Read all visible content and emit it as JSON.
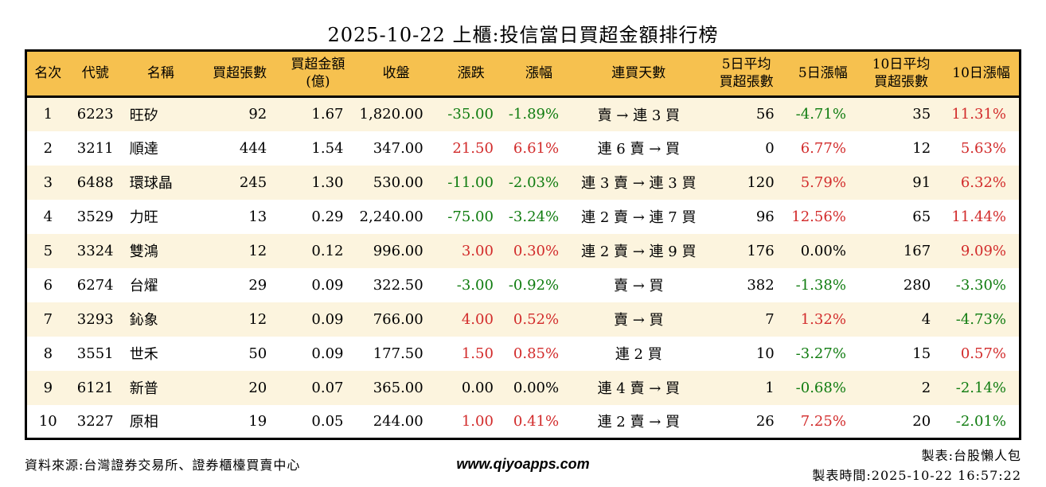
{
  "title": "2025-10-22 上櫃:投信當日買超金額排行榜",
  "colors": {
    "header_bg": "#f6c14f",
    "stripe": "#fcf4de",
    "up": "#d22b2b",
    "down": "#107c10",
    "border": "#000000"
  },
  "table": {
    "columns": [
      {
        "key": "rank",
        "label": "名次",
        "align": "center"
      },
      {
        "key": "code",
        "label": "代號",
        "align": "center"
      },
      {
        "key": "name",
        "label": "名稱",
        "align": "left"
      },
      {
        "key": "volume",
        "label": "買超張數",
        "align": "right"
      },
      {
        "key": "amount",
        "label": "買超金額\n(億)",
        "align": "right"
      },
      {
        "key": "close",
        "label": "收盤",
        "align": "right"
      },
      {
        "key": "change",
        "label": "漲跌",
        "align": "right"
      },
      {
        "key": "chg_pct",
        "label": "漲幅",
        "align": "right"
      },
      {
        "key": "streak",
        "label": "連買天數",
        "align": "center"
      },
      {
        "key": "avg5",
        "label": "5日平均\n買超張數",
        "align": "right"
      },
      {
        "key": "pct5",
        "label": "5日漲幅",
        "align": "right"
      },
      {
        "key": "avg10",
        "label": "10日平均\n買超張數",
        "align": "right"
      },
      {
        "key": "pct10",
        "label": "10日漲幅",
        "align": "right"
      }
    ],
    "rows": [
      {
        "rank": "1",
        "code": "6223",
        "name": "旺矽",
        "volume": "92",
        "amount": "1.67",
        "close": "1,820.00",
        "change": {
          "text": "-35.00",
          "trend": "down"
        },
        "chg_pct": {
          "text": "-1.89%",
          "trend": "down"
        },
        "streak": "賣 → 連 3 買",
        "avg5": "56",
        "pct5": {
          "text": "-4.71%",
          "trend": "down"
        },
        "avg10": "35",
        "pct10": {
          "text": "11.31%",
          "trend": "up"
        }
      },
      {
        "rank": "2",
        "code": "3211",
        "name": "順達",
        "volume": "444",
        "amount": "1.54",
        "close": "347.00",
        "change": {
          "text": "21.50",
          "trend": "up"
        },
        "chg_pct": {
          "text": "6.61%",
          "trend": "up"
        },
        "streak": "連 6 賣 → 買",
        "avg5": "0",
        "pct5": {
          "text": "6.77%",
          "trend": "up"
        },
        "avg10": "12",
        "pct10": {
          "text": "5.63%",
          "trend": "up"
        }
      },
      {
        "rank": "3",
        "code": "6488",
        "name": "環球晶",
        "volume": "245",
        "amount": "1.30",
        "close": "530.00",
        "change": {
          "text": "-11.00",
          "trend": "down"
        },
        "chg_pct": {
          "text": "-2.03%",
          "trend": "down"
        },
        "streak": "連 3 賣 → 連 3 買",
        "avg5": "120",
        "pct5": {
          "text": "5.79%",
          "trend": "up"
        },
        "avg10": "91",
        "pct10": {
          "text": "6.32%",
          "trend": "up"
        }
      },
      {
        "rank": "4",
        "code": "3529",
        "name": "力旺",
        "volume": "13",
        "amount": "0.29",
        "close": "2,240.00",
        "change": {
          "text": "-75.00",
          "trend": "down"
        },
        "chg_pct": {
          "text": "-3.24%",
          "trend": "down"
        },
        "streak": "連 2 賣 → 連 7 買",
        "avg5": "96",
        "pct5": {
          "text": "12.56%",
          "trend": "up"
        },
        "avg10": "65",
        "pct10": {
          "text": "11.44%",
          "trend": "up"
        }
      },
      {
        "rank": "5",
        "code": "3324",
        "name": "雙鴻",
        "volume": "12",
        "amount": "0.12",
        "close": "996.00",
        "change": {
          "text": "3.00",
          "trend": "up"
        },
        "chg_pct": {
          "text": "0.30%",
          "trend": "up"
        },
        "streak": "連 2 賣 → 連 9 買",
        "avg5": "176",
        "pct5": {
          "text": "0.00%",
          "trend": "flat"
        },
        "avg10": "167",
        "pct10": {
          "text": "9.09%",
          "trend": "up"
        }
      },
      {
        "rank": "6",
        "code": "6274",
        "name": "台燿",
        "volume": "29",
        "amount": "0.09",
        "close": "322.50",
        "change": {
          "text": "-3.00",
          "trend": "down"
        },
        "chg_pct": {
          "text": "-0.92%",
          "trend": "down"
        },
        "streak": "賣 → 買",
        "avg5": "382",
        "pct5": {
          "text": "-1.38%",
          "trend": "down"
        },
        "avg10": "280",
        "pct10": {
          "text": "-3.30%",
          "trend": "down"
        }
      },
      {
        "rank": "7",
        "code": "3293",
        "name": "鈊象",
        "volume": "12",
        "amount": "0.09",
        "close": "766.00",
        "change": {
          "text": "4.00",
          "trend": "up"
        },
        "chg_pct": {
          "text": "0.52%",
          "trend": "up"
        },
        "streak": "賣 → 買",
        "avg5": "7",
        "pct5": {
          "text": "1.32%",
          "trend": "up"
        },
        "avg10": "4",
        "pct10": {
          "text": "-4.73%",
          "trend": "down"
        }
      },
      {
        "rank": "8",
        "code": "3551",
        "name": "世禾",
        "volume": "50",
        "amount": "0.09",
        "close": "177.50",
        "change": {
          "text": "1.50",
          "trend": "up"
        },
        "chg_pct": {
          "text": "0.85%",
          "trend": "up"
        },
        "streak": "連 2 買",
        "avg5": "10",
        "pct5": {
          "text": "-3.27%",
          "trend": "down"
        },
        "avg10": "15",
        "pct10": {
          "text": "0.57%",
          "trend": "up"
        }
      },
      {
        "rank": "9",
        "code": "6121",
        "name": "新普",
        "volume": "20",
        "amount": "0.07",
        "close": "365.00",
        "change": {
          "text": "0.00",
          "trend": "flat"
        },
        "chg_pct": {
          "text": "0.00%",
          "trend": "flat"
        },
        "streak": "連 4 賣 → 買",
        "avg5": "1",
        "pct5": {
          "text": "-0.68%",
          "trend": "down"
        },
        "avg10": "2",
        "pct10": {
          "text": "-2.14%",
          "trend": "down"
        }
      },
      {
        "rank": "10",
        "code": "3227",
        "name": "原相",
        "volume": "19",
        "amount": "0.05",
        "close": "244.00",
        "change": {
          "text": "1.00",
          "trend": "up"
        },
        "chg_pct": {
          "text": "0.41%",
          "trend": "up"
        },
        "streak": "連 2 賣 → 買",
        "avg5": "26",
        "pct5": {
          "text": "7.25%",
          "trend": "up"
        },
        "avg10": "20",
        "pct10": {
          "text": "-2.01%",
          "trend": "down"
        }
      }
    ]
  },
  "footer": {
    "source": "資料來源:台灣證券交易所、證券櫃檯買賣中心",
    "site": "www.qiyoapps.com",
    "maker": "製表:台股懶人包",
    "made_time": "製表時間:2025-10-22 16:57:22"
  }
}
